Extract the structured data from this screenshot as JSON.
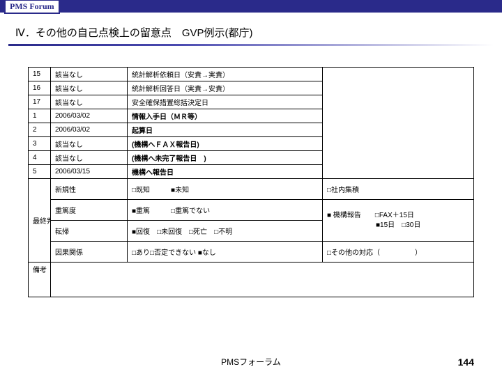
{
  "header": {
    "logo_text": "PMS Forum"
  },
  "title": "Ⅳ．その他の自己点検上の留意点　GVP例示(都庁)",
  "rows_top": [
    {
      "n": "15",
      "label": "該当なし",
      "main": "統計解析依頼日（安責→実責）"
    },
    {
      "n": "16",
      "label": "該当なし",
      "main": "統計解析回答日（実責→安責）"
    },
    {
      "n": "17",
      "label": "該当なし",
      "main": "安全確保措置総括決定日"
    },
    {
      "n": "1",
      "label": "2006/03/02",
      "main": "情報入手日（ＭＲ等）",
      "bold": true
    },
    {
      "n": "2",
      "label": "2006/03/02",
      "main": "起算日",
      "bold": true
    },
    {
      "n": "3",
      "label": "該当なし",
      "main": "(機構へＦＡＸ報告日)",
      "bold": true
    },
    {
      "n": "4",
      "label": "該当なし",
      "main": "(機構へ未完了報告日　)",
      "bold": true
    },
    {
      "n": "5",
      "label": "2006/03/15",
      "main": "機構へ報告日",
      "bold": true
    }
  ],
  "judgment": {
    "group_label": "最終判定",
    "rows": [
      {
        "label": "新規性",
        "main": "□既知　　　■未知",
        "right": "□社内集積"
      },
      {
        "label": "重篤度",
        "main": "■重篤　　　□重篤でない",
        "right": "■ 機構報告　　□FAX＋15日\n　　　　　　　■15日　□30日"
      },
      {
        "label": "転帰",
        "main": "■回復　□未回復　□死亡　□不明",
        "right": ""
      },
      {
        "label": "因果関係",
        "main": "□あり□否定できない ■なし",
        "right": "□その他の対応（　　　　　）"
      }
    ]
  },
  "remarks_label": "備考",
  "footer": "PMSフォーラム",
  "page": "144",
  "colors": {
    "brand": "#2a2a8a",
    "text": "#000000",
    "bg": "#ffffff"
  }
}
